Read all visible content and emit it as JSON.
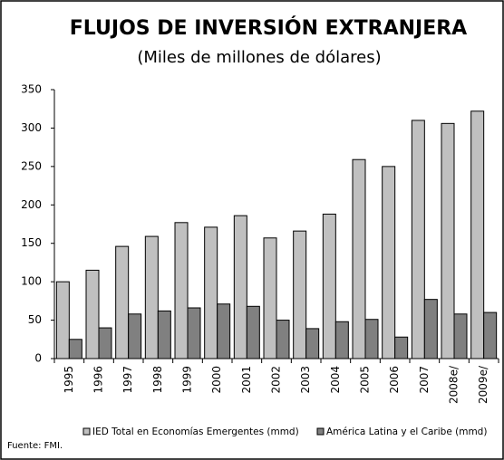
{
  "chart_data": {
    "type": "bar",
    "title": "FLUJOS DE INVERSIÓN EXTRANJERA",
    "subtitle": "(Miles de millones de dólares)",
    "categories": [
      "1995",
      "1996",
      "1997",
      "1998",
      "1999",
      "2000",
      "2001",
      "2002",
      "2003",
      "2004",
      "2005",
      "2006",
      "2007",
      "2008e/",
      "2009e/"
    ],
    "series": [
      {
        "name": "IED Total en Economías Emergentes (mmd)",
        "color": "#c0c0c0",
        "values": [
          100,
          115,
          146,
          159,
          177,
          171,
          186,
          157,
          166,
          188,
          259,
          250,
          310,
          306,
          322
        ]
      },
      {
        "name": "América Latina y el Caribe (mmd)",
        "color": "#808080",
        "values": [
          25,
          40,
          58,
          62,
          66,
          71,
          68,
          50,
          39,
          48,
          51,
          28,
          77,
          58,
          60
        ]
      }
    ],
    "ylim": [
      0,
      350
    ],
    "yticks": [
      0,
      50,
      100,
      150,
      200,
      250,
      300,
      350
    ],
    "grid": false,
    "legend": "bottom",
    "note": "Fuente: FMI."
  }
}
